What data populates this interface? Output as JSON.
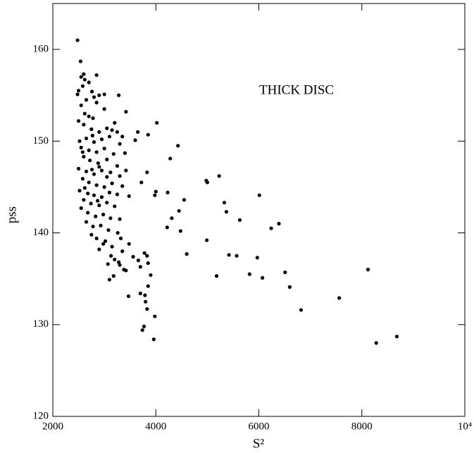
{
  "chart_data": {
    "type": "scatter",
    "xlabel": "S²",
    "ylabel": "pss",
    "annotation": "THICK DISC",
    "color": "#000000",
    "xlim": [
      2000,
      10000
    ],
    "ylim": [
      120,
      165
    ],
    "xticks": [
      2000,
      4000,
      6000,
      8000,
      {
        "value": 10000,
        "label": "10⁴"
      }
    ],
    "yticks": [
      120,
      130,
      140,
      150,
      160
    ],
    "x": [
      4020,
      3850,
      3600,
      3650,
      4430,
      4280,
      3830,
      3720,
      4000,
      3980,
      4230,
      4550,
      4450,
      4310,
      4220,
      4480,
      4600,
      4980,
      5000,
      5230,
      5330,
      5370,
      5630,
      4990,
      5420,
      5570,
      5180,
      5820,
      6010,
      6240,
      6390,
      5970,
      6070,
      6510,
      6600,
      6820,
      7560,
      8120,
      8280,
      8680,
      3260,
      3320,
      3480,
      3560,
      3660,
      3700,
      3780,
      3830,
      3850,
      3900,
      3850,
      3470,
      3700,
      3790,
      3800,
      3830,
      3980,
      3770,
      3740,
      3960,
      3420,
      3380,
      3100,
      3180,
      3280,
      3300,
      3070,
      3130,
      3200,
      2480,
      2540,
      2550,
      2600,
      2620,
      2700,
      2580,
      2500,
      2480,
      2760,
      2800,
      2900,
      3000,
      3280,
      2650,
      2850,
      2550,
      2620,
      2700,
      2780,
      3200,
      3420,
      2500,
      2600,
      2750,
      2900,
      3050,
      3150,
      3250,
      3350,
      2520,
      2650,
      2800,
      2950,
      3100,
      3300,
      2550,
      2700,
      2850,
      3000,
      3180,
      3400,
      2600,
      2720,
      2880,
      3050,
      3250,
      2500,
      2650,
      2800,
      2950,
      3120,
      3300,
      3420,
      2580,
      2700,
      2850,
      3000,
      3150,
      3350,
      2520,
      2680,
      2800,
      2950,
      3100,
      3250,
      3480,
      2600,
      2740,
      2900,
      3050,
      3200,
      2550,
      2680,
      2830,
      2980,
      3120,
      3300,
      2650,
      2780,
      2930,
      3080,
      2750,
      2850,
      3020,
      2900,
      3150,
      3350,
      2980,
      2870,
      2620,
      2760,
      2900,
      3050,
      2580,
      2770,
      3000,
      2850
    ],
    "values": [
      152.0,
      150.7,
      150.1,
      151.0,
      149.5,
      148.1,
      146.6,
      145.5,
      144.5,
      144.1,
      144.4,
      143.6,
      142.4,
      141.6,
      140.6,
      140.2,
      137.7,
      145.7,
      145.5,
      146.2,
      143.3,
      142.3,
      141.4,
      139.2,
      137.6,
      137.5,
      135.3,
      135.5,
      144.1,
      140.5,
      141.0,
      137.3,
      135.1,
      135.7,
      134.1,
      131.6,
      132.9,
      136.0,
      128.0,
      128.7,
      140.0,
      139.4,
      138.8,
      137.4,
      137.0,
      136.3,
      137.8,
      137.5,
      136.7,
      135.4,
      134.2,
      133.1,
      133.4,
      133.2,
      132.5,
      131.7,
      130.9,
      129.8,
      129.4,
      128.4,
      135.9,
      136.0,
      134.9,
      135.3,
      136.8,
      136.5,
      136.6,
      137.5,
      137.1,
      161.0,
      158.7,
      157.0,
      157.3,
      156.7,
      156.4,
      156.0,
      155.5,
      155.1,
      155.4,
      154.8,
      155.0,
      155.1,
      155.0,
      154.5,
      154.2,
      153.9,
      153.0,
      152.7,
      152.5,
      152.0,
      153.2,
      152.2,
      151.8,
      151.3,
      151.0,
      151.4,
      151.2,
      151.0,
      150.5,
      150.0,
      150.3,
      149.9,
      150.2,
      150.5,
      149.7,
      149.3,
      149.0,
      148.8,
      149.2,
      148.6,
      148.7,
      148.3,
      147.9,
      147.6,
      148.0,
      147.3,
      147.0,
      146.7,
      146.4,
      146.8,
      146.6,
      146.2,
      146.8,
      145.9,
      145.5,
      145.2,
      145.0,
      145.4,
      145.1,
      144.6,
      144.3,
      144.1,
      143.9,
      144.4,
      144.2,
      144.0,
      143.6,
      143.2,
      143.0,
      143.3,
      142.9,
      142.7,
      142.2,
      141.8,
      142.0,
      141.6,
      141.5,
      141.2,
      140.7,
      140.8,
      140.3,
      139.8,
      139.4,
      139.1,
      138.2,
      138.5,
      138.0,
      138.8,
      143.5,
      144.9,
      146.9,
      147.2,
      146.1,
      148.8,
      150.6,
      153.5,
      157.2
    ]
  }
}
